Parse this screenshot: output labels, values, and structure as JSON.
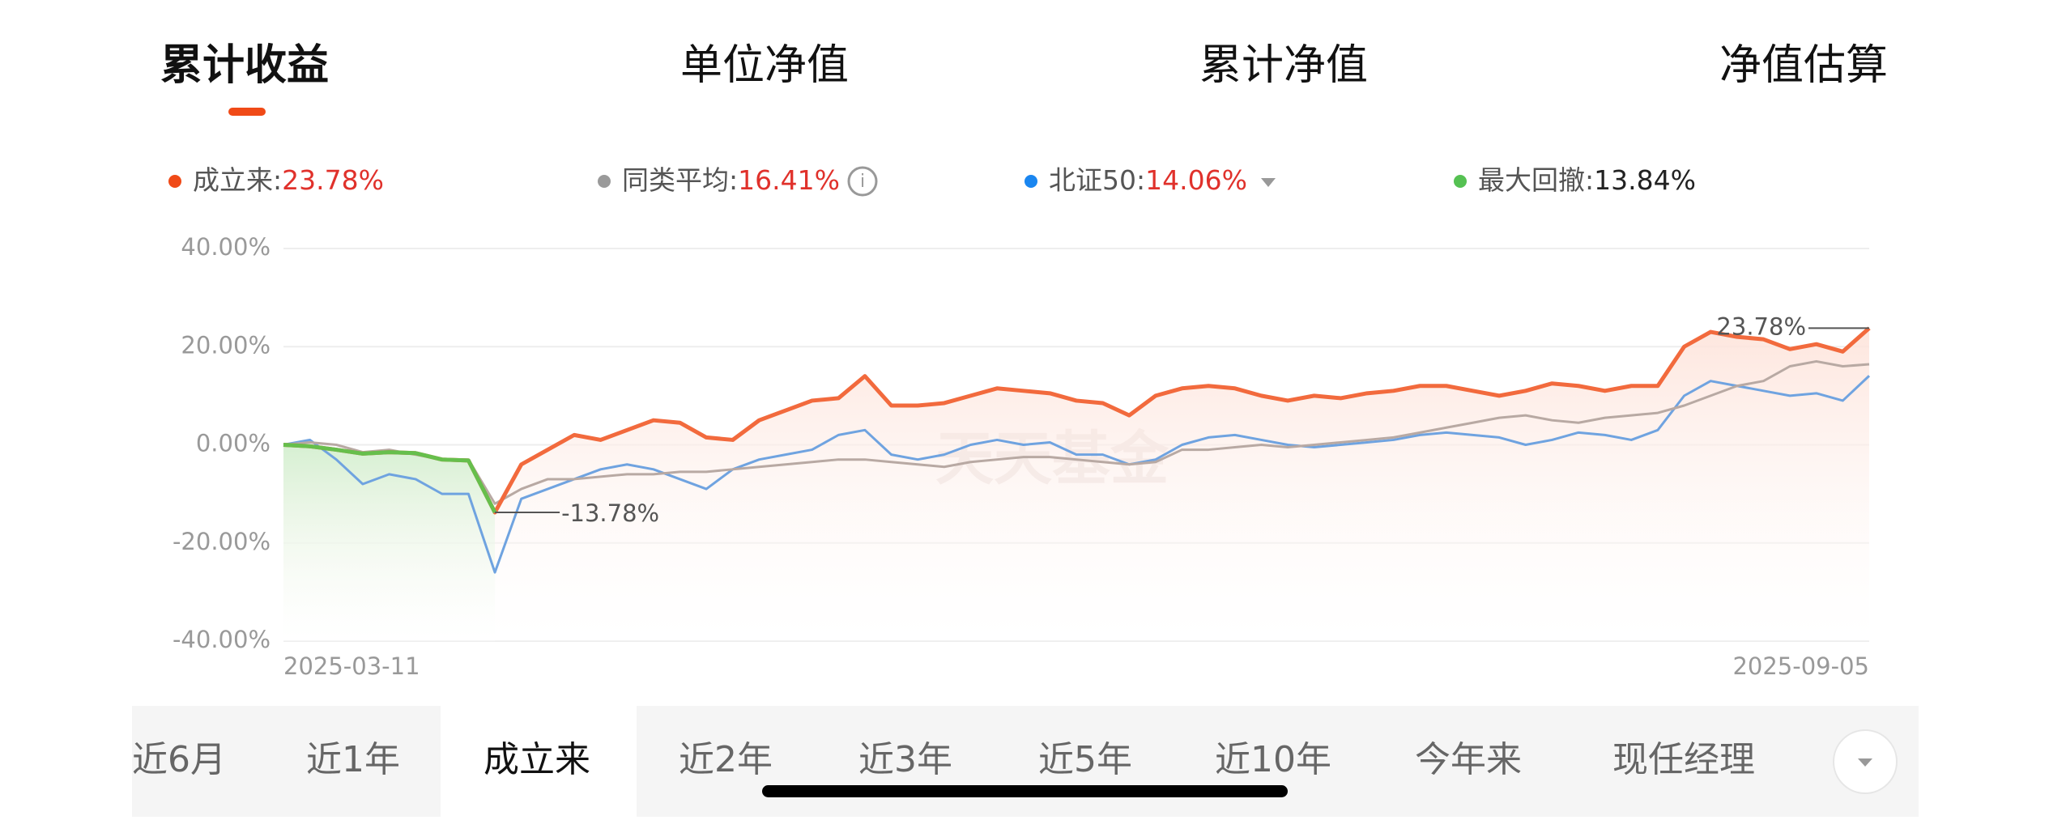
{
  "tabs": [
    "累计收益",
    "单位净值",
    "累计净值",
    "净值估算"
  ],
  "legend": [
    {
      "name": "成立来:",
      "value": "23.78%",
      "color": "#f04a17"
    },
    {
      "name": "同类平均:",
      "value": "16.41%",
      "color": "#9a9a9a"
    },
    {
      "name": "北证50:",
      "value": "14.06%",
      "color": "#1a86f0"
    },
    {
      "name": "最大回撤:",
      "value": "13.84%",
      "color": "#55c152"
    }
  ],
  "chart_data": {
    "type": "line",
    "watermark": "天天基金",
    "categories": [
      "2025-03-11",
      null,
      null,
      null,
      null,
      null,
      null,
      null,
      null,
      null,
      null,
      null,
      null,
      null,
      null,
      null,
      null,
      null,
      null,
      null,
      null,
      null,
      null,
      null,
      null,
      null,
      null,
      null,
      null,
      null,
      null,
      null,
      null,
      null,
      null,
      null,
      null,
      null,
      null,
      null,
      null,
      null,
      null,
      null,
      null,
      null,
      null,
      null,
      null,
      null,
      null,
      null,
      null,
      null,
      null,
      null,
      null,
      null,
      null,
      null,
      "2025-09-05"
    ],
    "series": [
      {
        "name": "成立来",
        "color": "#f26a3d",
        "values": [
          0,
          -0.3,
          -1,
          -1.8,
          -1.5,
          -1.7,
          -3,
          -3.2,
          -13.78,
          -4,
          -1,
          2,
          1,
          3,
          5,
          4.5,
          1.5,
          1,
          5,
          7,
          9,
          9.5,
          14,
          8,
          8,
          8.5,
          10,
          11.5,
          11,
          10.5,
          9,
          8.5,
          6,
          10,
          11.5,
          12,
          11.5,
          10,
          9,
          10,
          9.5,
          10.5,
          11,
          12,
          12,
          11,
          10,
          11,
          12.5,
          12,
          11,
          12,
          12,
          20,
          23,
          22,
          21.5,
          19.5,
          20.5,
          19,
          23.78
        ]
      },
      {
        "name": "同类平均",
        "color": "#b8a9a3",
        "values": [
          0,
          0.5,
          0,
          -1.5,
          -1,
          -2,
          -3,
          -3,
          -12,
          -9,
          -7,
          -7,
          -6.5,
          -6,
          -6,
          -5.5,
          -5.5,
          -5,
          -4.5,
          -4,
          -3.5,
          -3,
          -3,
          -3.5,
          -4,
          -4.5,
          -3.5,
          -3,
          -2.5,
          -2.5,
          -3,
          -3.5,
          -4,
          -3.5,
          -1,
          -1,
          -0.5,
          0,
          -0.5,
          0,
          0.5,
          1,
          1.5,
          2.5,
          3.5,
          4.5,
          5.5,
          6,
          5,
          4.5,
          5.5,
          6,
          6.5,
          8,
          10,
          12,
          13,
          16,
          17,
          16,
          16.41
        ]
      },
      {
        "name": "北证50",
        "color": "#6fa3e0",
        "values": [
          0,
          1,
          -3,
          -8,
          -6,
          -7,
          -10,
          -10,
          -26,
          -11,
          -9,
          -7,
          -5,
          -4,
          -5,
          -7,
          -9,
          -5,
          -3,
          -2,
          -1,
          2,
          3,
          -2,
          -3,
          -2,
          0,
          1,
          0,
          0.5,
          -2,
          -2,
          -4,
          -3,
          0,
          1.5,
          2,
          1,
          0,
          -0.5,
          0,
          0.5,
          1,
          2,
          2.5,
          2,
          1.5,
          0,
          1,
          2.5,
          2,
          1,
          3,
          10,
          13,
          12,
          11,
          10,
          10.5,
          9,
          14.06
        ]
      }
    ],
    "drawdown_color": "#66bf4c",
    "annotations": [
      {
        "value": -13.78,
        "label": "-13.78%"
      },
      {
        "value": 23.78,
        "label": "23.78%"
      }
    ],
    "ylim": [
      -40,
      40
    ],
    "yticks": [
      {
        "value": -40,
        "label": "-40.00%"
      },
      {
        "value": -20,
        "label": "-20.00%"
      },
      {
        "value": 0,
        "label": "0.00%"
      },
      {
        "value": 20,
        "label": "20.00%"
      },
      {
        "value": 40,
        "label": "40.00%"
      }
    ],
    "grid": true
  },
  "periods": [
    "近6月",
    "近1年",
    "成立来",
    "近2年",
    "近3年",
    "近5年",
    "近10年",
    "今年来",
    "现任经理"
  ]
}
